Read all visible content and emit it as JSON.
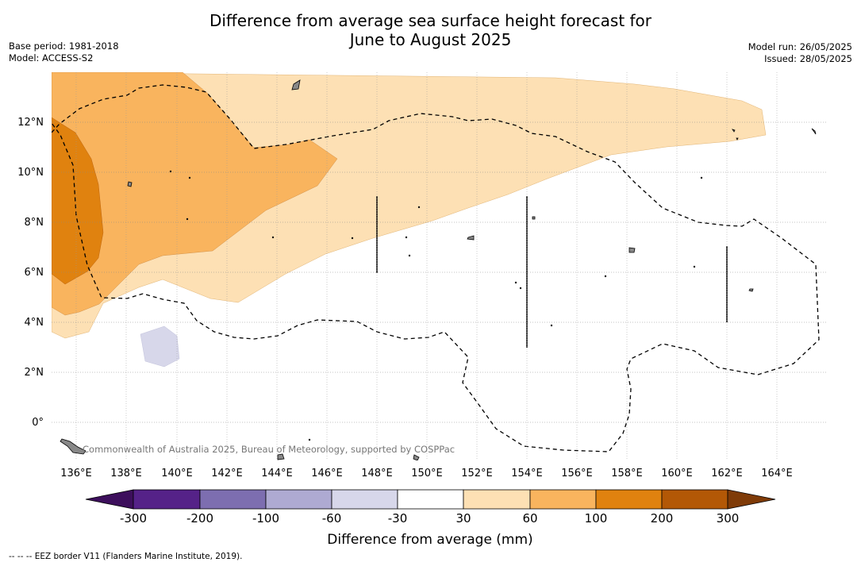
{
  "title_line1": "Difference from average sea surface height forecast for",
  "title_line2": "June to August 2025",
  "base_period": "Base period: 1981-2018",
  "model": "Model: ACCESS-S2",
  "model_run": "Model run: 26/05/2025",
  "issued": "Issued: 28/05/2025",
  "attribution": "Commonwealth of Australia 2025, Bureau of Meteorology, supported by COSPPac",
  "map": {
    "lat_labels": [
      "12°N",
      "10°N",
      "8°N",
      "6°N",
      "4°N",
      "2°N",
      "0°"
    ],
    "lon_labels": [
      "136°E",
      "138°E",
      "140°E",
      "142°E",
      "144°E",
      "146°E",
      "148°E",
      "150°E",
      "152°E",
      "154°E",
      "156°E",
      "158°E",
      "160°E",
      "162°E",
      "164°E"
    ]
  },
  "colorbar": {
    "title": "Difference from average (mm)",
    "ticks": [
      "-300",
      "-200",
      "-100",
      "-60",
      "-30",
      "30",
      "60",
      "100",
      "200",
      "300"
    ],
    "colors": [
      "#3d0f5c",
      "#552288",
      "#7d6eb0",
      "#aeaad2",
      "#d7d7ea",
      "#ffffff",
      "#fde0b4",
      "#f9b45e",
      "#e0820f",
      "#b35806",
      "#7f3b08"
    ]
  },
  "footer": "-- -- -- EEZ border V11 (Flanders Marine Institute, 2019)."
}
